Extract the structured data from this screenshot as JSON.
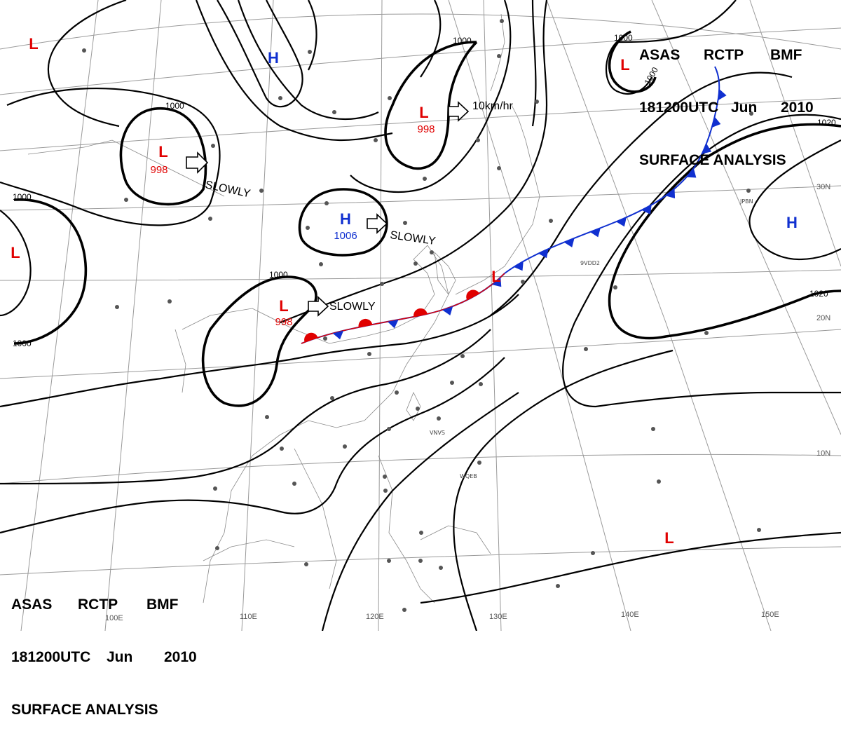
{
  "header": {
    "line1": [
      "ASAS",
      "RCTP",
      "BMF"
    ],
    "line2": [
      "181200UTC",
      "Jun",
      "2010"
    ],
    "line3": "SURFACE ANALYSIS"
  },
  "isobar_labels": {
    "c1000": "1000",
    "c1020": "1020"
  },
  "systems": [
    {
      "type": "L",
      "label": "L",
      "pressure": "998"
    },
    {
      "type": "L",
      "label": "L",
      "pressure": "998"
    },
    {
      "type": "L",
      "label": "L",
      "pressure": "998"
    },
    {
      "type": "H",
      "label": "H",
      "pressure": "1006"
    }
  ],
  "plain_lows": [
    "L",
    "L",
    "L",
    "L",
    "L"
  ],
  "plain_highs": [
    "H",
    "H"
  ],
  "movements": [
    "SLOWLY",
    "SLOWLY",
    "SLOWLY",
    "10km/hr"
  ],
  "longitude_labels": [
    "110E",
    "120E",
    "130E",
    "140E",
    "150E",
    "100E"
  ],
  "latitude_labels": [
    "30N",
    "20N",
    "10N"
  ],
  "station_codes": [
    "JPBN",
    "9VDD2",
    "VNVS",
    "WQEB"
  ],
  "colors": {
    "low": "#e00000",
    "high": "#1030d0",
    "warm_front": "#e00000",
    "cold_front": "#1030d0"
  }
}
